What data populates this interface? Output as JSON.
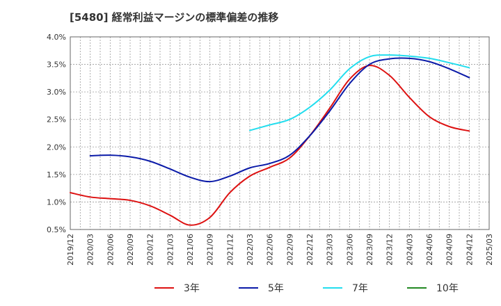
{
  "chart_data": {
    "type": "line",
    "title": "[5480]  経常利益マージンの標準偏差の推移",
    "xlabel": "",
    "ylabel": "",
    "ylim": [
      0.5,
      4.0
    ],
    "yticks": [
      "0.5%",
      "1.0%",
      "1.5%",
      "2.0%",
      "2.5%",
      "3.0%",
      "3.5%",
      "4.0%"
    ],
    "ytick_values": [
      0.5,
      1.0,
      1.5,
      2.0,
      2.5,
      3.0,
      3.5,
      4.0
    ],
    "xticks": [
      "2019/12",
      "2020/03",
      "2020/06",
      "2020/09",
      "2020/12",
      "2021/03",
      "2021/06",
      "2021/09",
      "2021/12",
      "2022/03",
      "2022/06",
      "2022/09",
      "2022/12",
      "2023/03",
      "2023/06",
      "2023/09",
      "2023/12",
      "2024/03",
      "2024/06",
      "2024/09",
      "2024/12",
      "2025/03"
    ],
    "grid": true,
    "legend_position": "bottom",
    "series": [
      {
        "name": "3年",
        "color": "#dd1111",
        "points": [
          [
            "2019/12",
            1.17
          ],
          [
            "2020/03",
            1.09
          ],
          [
            "2020/06",
            1.06
          ],
          [
            "2020/09",
            1.03
          ],
          [
            "2020/12",
            0.93
          ],
          [
            "2021/03",
            0.76
          ],
          [
            "2021/06",
            0.58
          ],
          [
            "2021/09",
            0.72
          ],
          [
            "2021/12",
            1.17
          ],
          [
            "2022/03",
            1.47
          ],
          [
            "2022/06",
            1.63
          ],
          [
            "2022/09",
            1.8
          ],
          [
            "2022/12",
            2.2
          ],
          [
            "2023/03",
            2.7
          ],
          [
            "2023/06",
            3.23
          ],
          [
            "2023/09",
            3.48
          ],
          [
            "2023/12",
            3.3
          ],
          [
            "2024/03",
            2.9
          ],
          [
            "2024/06",
            2.55
          ],
          [
            "2024/09",
            2.37
          ],
          [
            "2024/12",
            2.29
          ]
        ]
      },
      {
        "name": "5年",
        "color": "#0a1aa8",
        "points": [
          [
            "2020/03",
            1.84
          ],
          [
            "2020/06",
            1.85
          ],
          [
            "2020/09",
            1.82
          ],
          [
            "2020/12",
            1.74
          ],
          [
            "2021/03",
            1.6
          ],
          [
            "2021/06",
            1.45
          ],
          [
            "2021/09",
            1.37
          ],
          [
            "2021/12",
            1.47
          ],
          [
            "2022/03",
            1.62
          ],
          [
            "2022/06",
            1.7
          ],
          [
            "2022/09",
            1.85
          ],
          [
            "2022/12",
            2.2
          ],
          [
            "2023/03",
            2.65
          ],
          [
            "2023/06",
            3.15
          ],
          [
            "2023/09",
            3.5
          ],
          [
            "2023/12",
            3.6
          ],
          [
            "2024/03",
            3.61
          ],
          [
            "2024/06",
            3.55
          ],
          [
            "2024/09",
            3.42
          ],
          [
            "2024/12",
            3.26
          ]
        ]
      },
      {
        "name": "7年",
        "color": "#22ddee",
        "points": [
          [
            "2022/03",
            2.3
          ],
          [
            "2022/06",
            2.4
          ],
          [
            "2022/09",
            2.5
          ],
          [
            "2022/12",
            2.72
          ],
          [
            "2023/03",
            3.03
          ],
          [
            "2023/06",
            3.42
          ],
          [
            "2023/09",
            3.64
          ],
          [
            "2023/12",
            3.67
          ],
          [
            "2024/03",
            3.65
          ],
          [
            "2024/06",
            3.61
          ],
          [
            "2024/09",
            3.53
          ],
          [
            "2024/12",
            3.44
          ]
        ]
      },
      {
        "name": "10年",
        "color": "#228822",
        "points": []
      }
    ]
  }
}
